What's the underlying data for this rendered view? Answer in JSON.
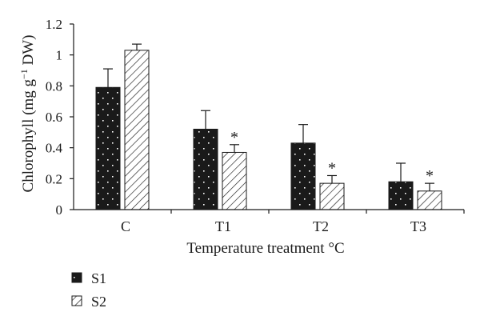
{
  "chart_data": {
    "type": "bar",
    "title": "",
    "xlabel": "Temperature treatment °C",
    "ylabel": "Chlorophyll (mg g",
    "ylabel_sup": "−1",
    "ylabel_tail": " DW)",
    "ylim": [
      0,
      1.2
    ],
    "yticks": [
      "0",
      "0.2",
      "0.4",
      "0.6",
      "0.8",
      "1",
      "1.2"
    ],
    "ytick_values": [
      0,
      0.2,
      0.4,
      0.6,
      0.8,
      1.0,
      1.2
    ],
    "categories": [
      "C",
      "T1",
      "T2",
      "T3"
    ],
    "series": [
      {
        "name": "S1",
        "pattern": "dots",
        "color": "#1a1a1a",
        "values": [
          0.79,
          0.52,
          0.43,
          0.18
        ],
        "errors": [
          0.12,
          0.12,
          0.12,
          0.12
        ],
        "significant": [
          false,
          false,
          false,
          false
        ]
      },
      {
        "name": "S2",
        "pattern": "hatch",
        "color": "#1a1a1a",
        "values": [
          1.03,
          0.37,
          0.17,
          0.12
        ],
        "errors": [
          0.04,
          0.05,
          0.05,
          0.05
        ],
        "significant": [
          false,
          true,
          true,
          true
        ]
      }
    ],
    "significance_marker": "*",
    "legend_position": "bottom-left",
    "grid": false
  }
}
